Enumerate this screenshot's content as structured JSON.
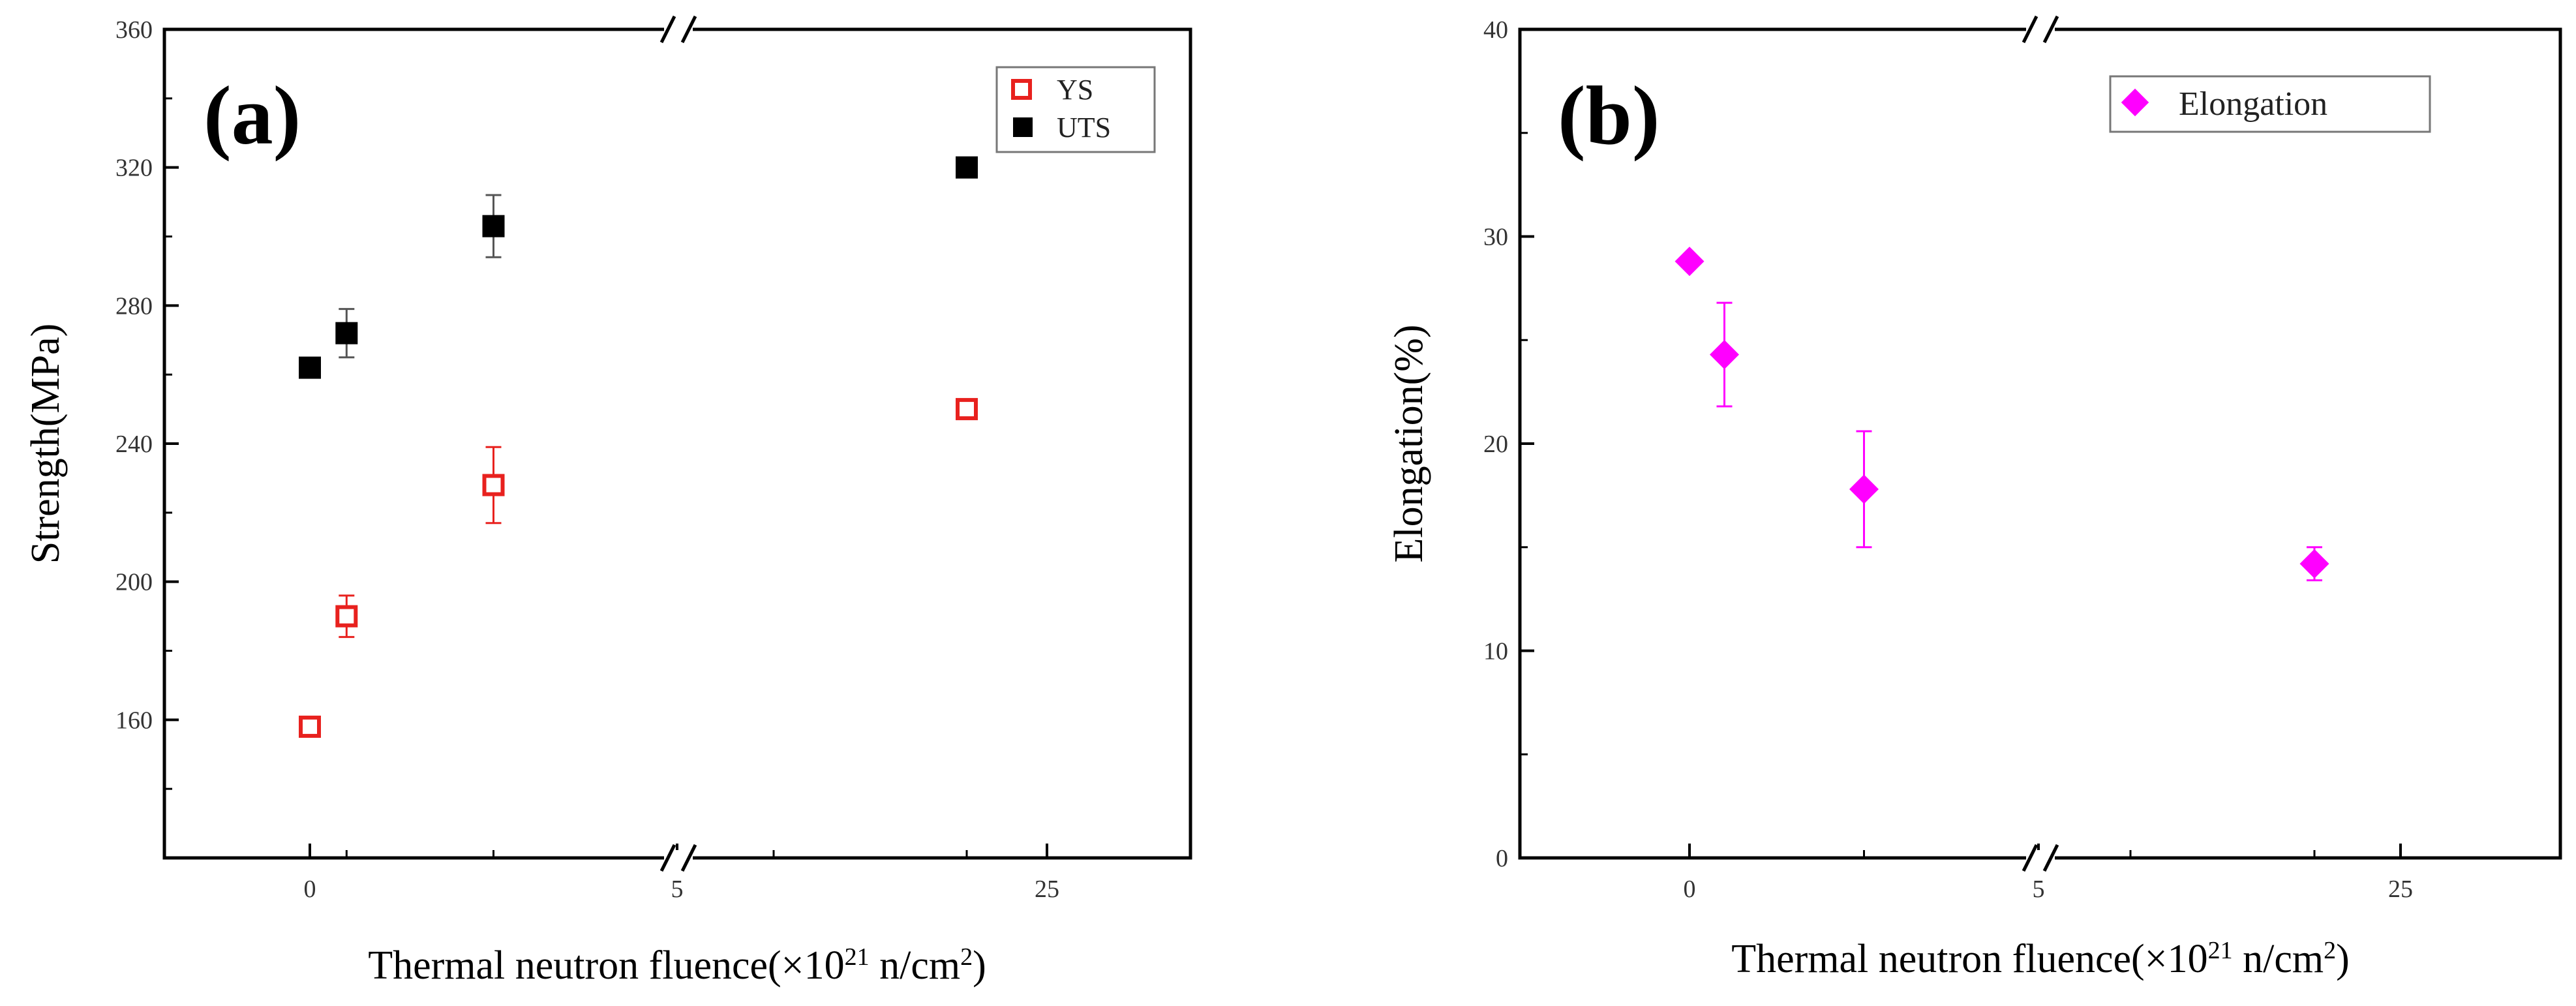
{
  "chart_data": [
    {
      "type": "scatter",
      "panel_label": "(a)",
      "title": "",
      "xlabel": "Thermal neutron fluence(×10",
      "xlabel_sup1": "21",
      "xlabel_mid": " n/cm",
      "xlabel_sup2": "2",
      "xlabel_end": ")",
      "ylabel": "Strength(MPa)",
      "ylim": [
        120,
        360
      ],
      "y_ticks": [
        "160",
        "200",
        "240",
        "280",
        "320",
        "360"
      ],
      "x_ticks": [
        "0",
        "5",
        "25"
      ],
      "axis_break": "x between 5 and 25 (top and bottom axes)",
      "legend_position": "top-right",
      "series": [
        {
          "name": "YS",
          "marker": "open-square",
          "color": "#e8211e",
          "x": [
            0,
            0.5,
            2.5,
            20
          ],
          "y": [
            158,
            190,
            228,
            250
          ],
          "err": [
            0,
            6,
            11,
            0
          ]
        },
        {
          "name": "UTS",
          "marker": "filled-square",
          "color": "#000000",
          "x": [
            0,
            0.5,
            2.5,
            20
          ],
          "y": [
            262,
            272,
            303,
            320
          ],
          "err": [
            0,
            7,
            9,
            0
          ]
        }
      ]
    },
    {
      "type": "scatter",
      "panel_label": "(b)",
      "title": "",
      "xlabel": "Thermal neutron fluence(×10",
      "xlabel_sup1": "21",
      "xlabel_mid": " n/cm",
      "xlabel_sup2": "2",
      "xlabel_end": ")",
      "ylabel": "Elongation(%)",
      "ylim": [
        0,
        40
      ],
      "y_ticks": [
        "0",
        "10",
        "20",
        "30",
        "40"
      ],
      "x_ticks": [
        "0",
        "5",
        "25"
      ],
      "axis_break": "x between 5 and 25 (top and bottom axes)",
      "legend_position": "top-right",
      "series": [
        {
          "name": "Elongation",
          "marker": "filled-diamond",
          "color": "#ff00ff",
          "x": [
            0,
            0.5,
            2.5,
            20
          ],
          "y": [
            28.8,
            24.3,
            17.8,
            14.2
          ],
          "err": [
            0,
            2.5,
            2.8,
            0.8
          ]
        }
      ]
    }
  ]
}
